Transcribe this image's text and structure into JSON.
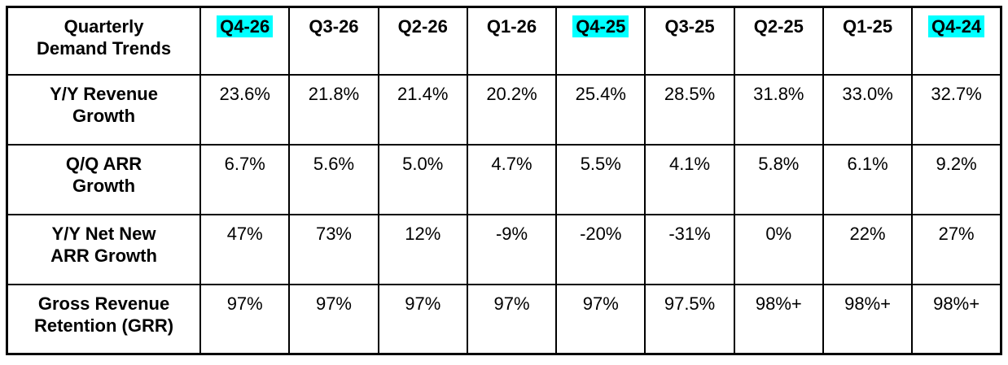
{
  "table": {
    "corner_label": "Quarterly\nDemand Trends",
    "highlight_color": "#00ffff",
    "columns": [
      {
        "label": "Q4-26",
        "highlighted": true
      },
      {
        "label": "Q3-26",
        "highlighted": false
      },
      {
        "label": "Q2-26",
        "highlighted": false
      },
      {
        "label": "Q1-26",
        "highlighted": false
      },
      {
        "label": "Q4-25",
        "highlighted": true
      },
      {
        "label": "Q3-25",
        "highlighted": false
      },
      {
        "label": "Q2-25",
        "highlighted": false
      },
      {
        "label": "Q1-25",
        "highlighted": false
      },
      {
        "label": "Q4-24",
        "highlighted": true
      }
    ],
    "rows": [
      {
        "label": "Y/Y Revenue\nGrowth",
        "values": [
          "23.6%",
          "21.8%",
          "21.4%",
          "20.2%",
          "25.4%",
          "28.5%",
          "31.8%",
          "33.0%",
          "32.7%"
        ]
      },
      {
        "label": "Q/Q ARR\nGrowth",
        "values": [
          "6.7%",
          "5.6%",
          "5.0%",
          "4.7%",
          "5.5%",
          "4.1%",
          "5.8%",
          "6.1%",
          "9.2%"
        ]
      },
      {
        "label": "Y/Y Net New\nARR Growth",
        "values": [
          "47%",
          "73%",
          "12%",
          "-9%",
          "-20%",
          "-31%",
          "0%",
          "22%",
          "27%"
        ]
      },
      {
        "label": "Gross Revenue\nRetention (GRR)",
        "values": [
          "97%",
          "97%",
          "97%",
          "97%",
          "97%",
          "97.5%",
          "98%+",
          "98%+",
          "98%+"
        ]
      }
    ]
  },
  "chart_data": {
    "type": "table",
    "title": "Quarterly Demand Trends",
    "columns": [
      "Q4-26",
      "Q3-26",
      "Q2-26",
      "Q1-26",
      "Q4-25",
      "Q3-25",
      "Q2-25",
      "Q1-25",
      "Q4-24"
    ],
    "highlighted_columns": [
      "Q4-26",
      "Q4-25",
      "Q4-24"
    ],
    "rows": [
      {
        "metric": "Y/Y Revenue Growth",
        "values": [
          "23.6%",
          "21.8%",
          "21.4%",
          "20.2%",
          "25.4%",
          "28.5%",
          "31.8%",
          "33.0%",
          "32.7%"
        ]
      },
      {
        "metric": "Q/Q ARR Growth",
        "values": [
          "6.7%",
          "5.6%",
          "5.0%",
          "4.7%",
          "5.5%",
          "4.1%",
          "5.8%",
          "6.1%",
          "9.2%"
        ]
      },
      {
        "metric": "Y/Y Net New ARR Growth",
        "values": [
          "47%",
          "73%",
          "12%",
          "-9%",
          "-20%",
          "-31%",
          "0%",
          "22%",
          "27%"
        ]
      },
      {
        "metric": "Gross Revenue Retention (GRR)",
        "values": [
          "97%",
          "97%",
          "97%",
          "97%",
          "97%",
          "97.5%",
          "98%+",
          "98%+",
          "98%+"
        ]
      }
    ]
  }
}
